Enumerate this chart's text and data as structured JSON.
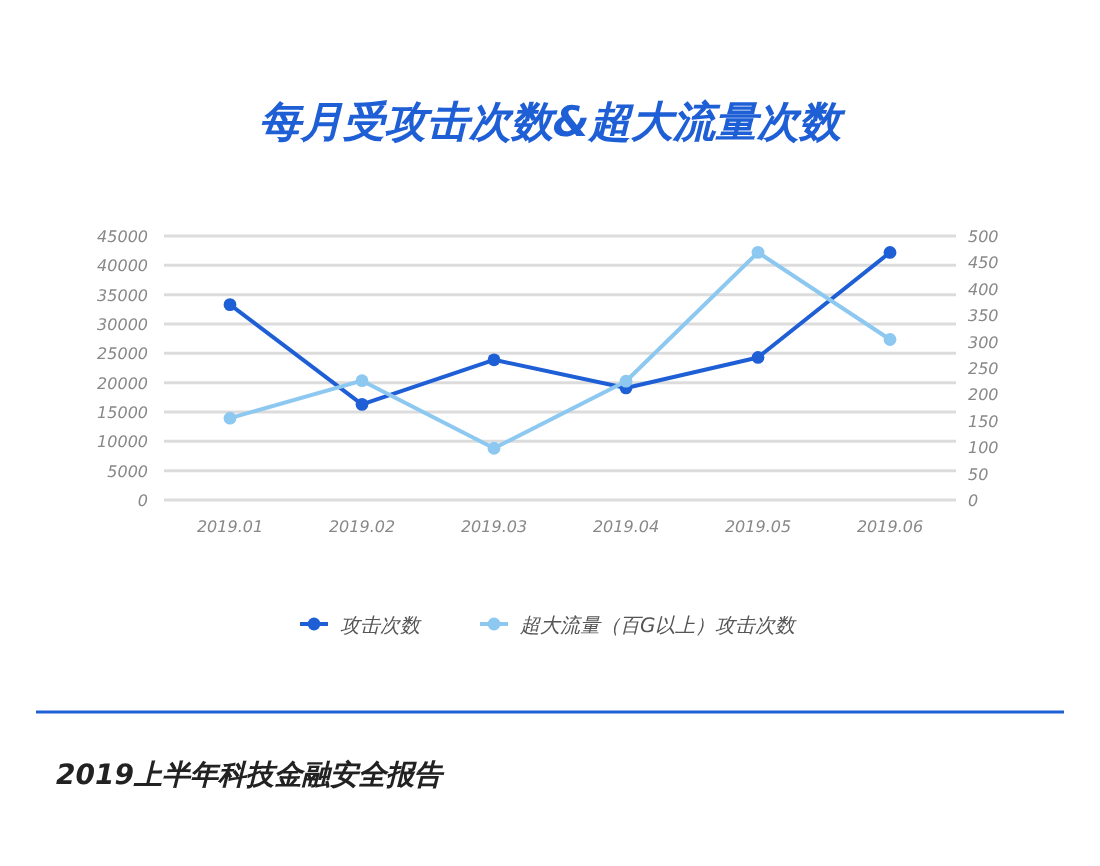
{
  "chart_data": {
    "type": "line",
    "title": "每月受攻击次数&超大流量次数",
    "categories": [
      "2019.01",
      "2019.02",
      "2019.03",
      "2019.04",
      "2019.05",
      "2019.06"
    ],
    "series": [
      {
        "name": "攻击次数",
        "color": "#1f5fd6",
        "values": [
          33300,
          16300,
          23900,
          19100,
          24300,
          42200
        ]
      },
      {
        "name": "超大流量（百G以上）攻击次数",
        "color": "#8cc8f0",
        "axis": "y2",
        "values": [
          155,
          226,
          98,
          225,
          469,
          304
        ]
      }
    ],
    "ylim": [
      0,
      45000
    ],
    "yticks": [
      0,
      5000,
      10000,
      15000,
      20000,
      25000,
      30000,
      35000,
      40000,
      45000
    ],
    "y2lim": [
      0,
      500
    ],
    "y2ticks": [
      0,
      50,
      100,
      150,
      200,
      250,
      300,
      350,
      400,
      450,
      500
    ],
    "grid": "y",
    "legend": "bottom",
    "marker": "circle",
    "annotations": [
      "2019上半年科技金融安全报告"
    ]
  }
}
